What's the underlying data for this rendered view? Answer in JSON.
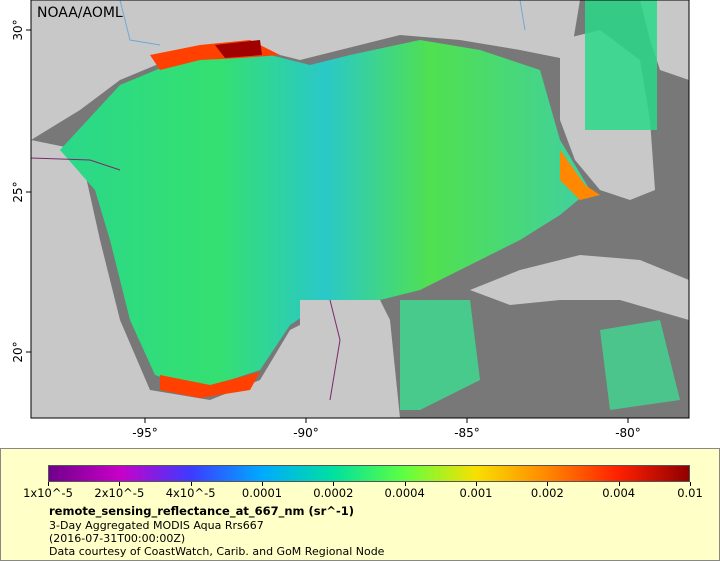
{
  "map": {
    "watermark": "NOAA/AOML",
    "lon_ticks": [
      "-95°",
      "-90°",
      "-85°",
      "-80°"
    ],
    "lat_ticks": [
      "30°",
      "25°",
      "20°"
    ],
    "colors": {
      "land": "#c8c8c8",
      "no_data": "#787878",
      "rivers": "#6fa8d8",
      "borders": "#7a2a6a",
      "frame": "#000000"
    }
  },
  "legend": {
    "colorbar_labels": [
      "1x10^-5",
      "2x10^-5",
      "4x10^-5",
      "0.0001",
      "0.0002",
      "0.0004",
      "0.001",
      "0.002",
      "0.004",
      "0.01"
    ],
    "colorbar_colors": [
      "#70008a",
      "#c800c8",
      "#3c3cff",
      "#00aaff",
      "#00e0a0",
      "#60ff40",
      "#f8e000",
      "#ff8800",
      "#ff2000",
      "#900000"
    ],
    "variable": "remote_sensing_reflectance_at_667_nm (sr^-1)",
    "description": "3-Day Aggregated MODIS Aqua Rrs667",
    "timestamp": "(2016-07-31T00:00:00Z)",
    "credit": "Data courtesy of CoastWatch, Carib. and GoM Regional Node",
    "background": "#ffffc8"
  }
}
